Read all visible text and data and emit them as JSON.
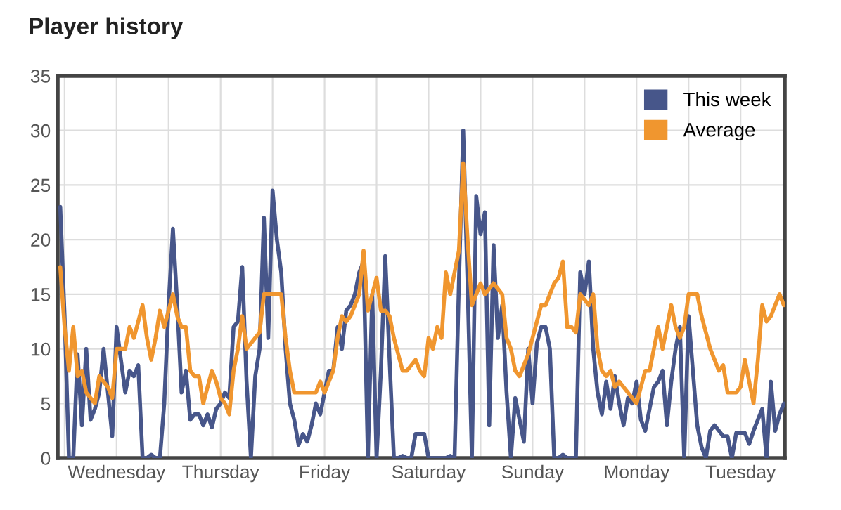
{
  "chart_data": {
    "type": "line",
    "title": "Player history",
    "categories": [
      null,
      null,
      null,
      null,
      null,
      null,
      null,
      null,
      null,
      null,
      null,
      null,
      null,
      "Wednesday",
      null,
      null,
      null,
      null,
      null,
      null,
      null,
      null,
      null,
      null,
      null,
      null,
      null,
      null,
      null,
      null,
      null,
      null,
      null,
      null,
      null,
      null,
      null,
      "Thursday",
      null,
      null,
      null,
      null,
      null,
      null,
      null,
      null,
      null,
      null,
      null,
      null,
      null,
      null,
      null,
      null,
      null,
      null,
      null,
      null,
      null,
      null,
      null,
      "Friday",
      null,
      null,
      null,
      null,
      null,
      null,
      null,
      null,
      null,
      null,
      null,
      null,
      null,
      null,
      null,
      null,
      null,
      null,
      null,
      null,
      null,
      null,
      null,
      "Saturday",
      null,
      null,
      null,
      null,
      null,
      null,
      null,
      null,
      null,
      null,
      null,
      null,
      null,
      null,
      null,
      null,
      null,
      null,
      null,
      null,
      null,
      null,
      null,
      "Sunday",
      null,
      null,
      null,
      null,
      null,
      null,
      null,
      null,
      null,
      null,
      null,
      null,
      null,
      null,
      null,
      null,
      null,
      null,
      null,
      null,
      null,
      null,
      null,
      "Monday",
      null,
      null,
      null,
      null,
      null,
      null,
      null,
      null,
      null,
      null,
      null,
      null,
      null,
      null,
      null,
      null,
      null,
      null,
      null,
      null,
      null,
      null,
      null,
      "Tuesday",
      null,
      null,
      null,
      null,
      null,
      null,
      null,
      null,
      null,
      null
    ],
    "ylim": [
      0,
      35
    ],
    "yticks": [
      0,
      5,
      10,
      15,
      20,
      25,
      30,
      35
    ],
    "grid": true,
    "legend": "top right",
    "marker": "none",
    "line_style": "solid",
    "series": [
      {
        "name": "This week",
        "color": "#47568a",
        "values": [
          23,
          13,
          0,
          0,
          9.5,
          3,
          10,
          3.5,
          4.5,
          6,
          10,
          6,
          2,
          12,
          9,
          6,
          8,
          7.5,
          8.5,
          0,
          0,
          0.3,
          0,
          0,
          5,
          14,
          21,
          14,
          6,
          8,
          3.5,
          4,
          4,
          3,
          4,
          2.8,
          4.5,
          5,
          6,
          5.5,
          12,
          12.5,
          17.5,
          7,
          0,
          7.5,
          10,
          22,
          11,
          24.5,
          20,
          17,
          10,
          5,
          3.5,
          1.2,
          2.2,
          1.5,
          3,
          5,
          4,
          6,
          8,
          8,
          12,
          10,
          13.5,
          14,
          15,
          17,
          18,
          0,
          15,
          0,
          8,
          18.5,
          9,
          0,
          0,
          0.2,
          0,
          0,
          2.2,
          2.2,
          2.2,
          0,
          0,
          0,
          0,
          0,
          0.2,
          0,
          16,
          30,
          16,
          0,
          24,
          20.5,
          22.5,
          3,
          19.5,
          11,
          14,
          6,
          0,
          5.5,
          3.5,
          1.5,
          10,
          5,
          10.5,
          12,
          12,
          10,
          0,
          0,
          0.3,
          0,
          0,
          0,
          17,
          15,
          18,
          10,
          6,
          4,
          7,
          4.5,
          7.5,
          5,
          3,
          5.5,
          5,
          7,
          3.5,
          2.5,
          4.5,
          6.5,
          7,
          8,
          3,
          7,
          10,
          12,
          0,
          13,
          8,
          3,
          1,
          0,
          2.5,
          3,
          2.5,
          2,
          2,
          0,
          2.3,
          2.3,
          2.3,
          1.3,
          2.5,
          3.5,
          4.5,
          0,
          7,
          2.5,
          4,
          5
        ]
      },
      {
        "name": "Average",
        "color": "#f0962f",
        "values": [
          17.5,
          12,
          8,
          12,
          7.5,
          8,
          6,
          5.5,
          5,
          7.5,
          7,
          6.5,
          5.5,
          10,
          10,
          10,
          12,
          11,
          12.5,
          14,
          11,
          9,
          11,
          13.5,
          12,
          13.5,
          15,
          13,
          12,
          12,
          8,
          7.5,
          7.5,
          5,
          6.5,
          8,
          7,
          5.5,
          5,
          4,
          8,
          10,
          13,
          10,
          10.5,
          11,
          11.5,
          15,
          15,
          15,
          15,
          15,
          11,
          8,
          6,
          6,
          6,
          6,
          6,
          6,
          7,
          6,
          7,
          8,
          11,
          13,
          12.5,
          13,
          14,
          15,
          19,
          13.5,
          15,
          16.5,
          13.5,
          13.5,
          13,
          11,
          9.5,
          8,
          8,
          8.5,
          9,
          8,
          7.5,
          11,
          10,
          12,
          11,
          17,
          15,
          17,
          19,
          27,
          20,
          14,
          15,
          16,
          15,
          15.5,
          16,
          15.5,
          15,
          11,
          10,
          8,
          7.5,
          8.5,
          9.5,
          11,
          12.5,
          14,
          14,
          15,
          16,
          16.5,
          18,
          12,
          12,
          11.5,
          15,
          14.5,
          14,
          15,
          10,
          8,
          7.5,
          8,
          6.5,
          7,
          6.5,
          6,
          5.5,
          5,
          6.5,
          8,
          8,
          10,
          12,
          10,
          12,
          14,
          12,
          11,
          12,
          15,
          15,
          15,
          13,
          11.5,
          10,
          9,
          8,
          8.5,
          6,
          6,
          6,
          6.5,
          9,
          7,
          5,
          9,
          14,
          12.5,
          13,
          14,
          15,
          14
        ]
      }
    ]
  }
}
